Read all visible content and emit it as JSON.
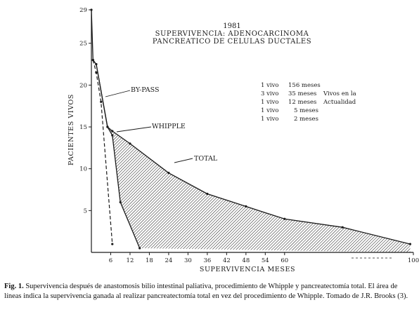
{
  "chart_data": {
    "type": "area",
    "title_lines": [
      "1981",
      "SUPERVIVENCIA: ADENOCARCINOMA",
      "PANCREATICO DE CELULAS DUCTALES"
    ],
    "xlabel": "SUPERVIVENCIA MESES",
    "ylabel": "PACIENTES VIVOS",
    "xlim": [
      0,
      100
    ],
    "ylim": [
      0,
      29
    ],
    "x_ticks": [
      6,
      12,
      18,
      24,
      30,
      36,
      42,
      48,
      54,
      60,
      100
    ],
    "x_tick_labels": [
      "6",
      "12",
      "18",
      "24",
      "30",
      "36",
      "42",
      "48",
      "54",
      "60",
      "100"
    ],
    "y_ticks": [
      5,
      10,
      15,
      20,
      25,
      29
    ],
    "y_tick_labels": [
      "5",
      "10",
      "15",
      "20",
      "25",
      "29"
    ],
    "series": [
      {
        "name": "BY-PASS",
        "style": "dashed",
        "x": [
          0.5,
          1.5,
          3,
          6.5
        ],
        "y": [
          23,
          21.5,
          18,
          1
        ]
      },
      {
        "name": "WHIPPLE",
        "style": "solid",
        "x": [
          0.5,
          1.5,
          5,
          6.5,
          9,
          15
        ],
        "y": [
          23,
          22.5,
          15,
          14,
          6,
          0.5
        ]
      },
      {
        "name": "TOTAL",
        "style": "solid",
        "x": [
          0,
          0.5,
          1.5,
          5,
          6.5,
          12,
          24,
          36,
          48,
          60,
          78,
          99
        ],
        "y": [
          29,
          23,
          22.5,
          15,
          14.5,
          13,
          9.5,
          7,
          5.5,
          4,
          3,
          1
        ]
      }
    ],
    "annotations": {
      "survivors": [
        {
          "count": "1 vivo",
          "months": "156 meses"
        },
        {
          "count": "3 vivo",
          "months": "35 meses"
        },
        {
          "count": "1 vivo",
          "months": "12 meses"
        },
        {
          "count": "1 vivo",
          "months": "5 meses"
        },
        {
          "count": "1 vivo",
          "months": "2 meses"
        }
      ],
      "alive_note_lines": [
        "Vivos en la",
        "Actualidad"
      ]
    },
    "grid": false,
    "legend": "inline labels"
  },
  "caption": {
    "label": "Fig. 1.",
    "text": "Supervivencia después de anastomosis bilio intestinal paliativa, procedimiento de Whipple y pancreatectomía total. El área de líneas indica la supervivencia ganada al realizar pancreatectomía total en vez del procedimiento de Whipple. Tomado de J.R. Brooks (3)."
  },
  "colors": {
    "ink": "#1a1a1a",
    "paper": "#ffffff"
  }
}
